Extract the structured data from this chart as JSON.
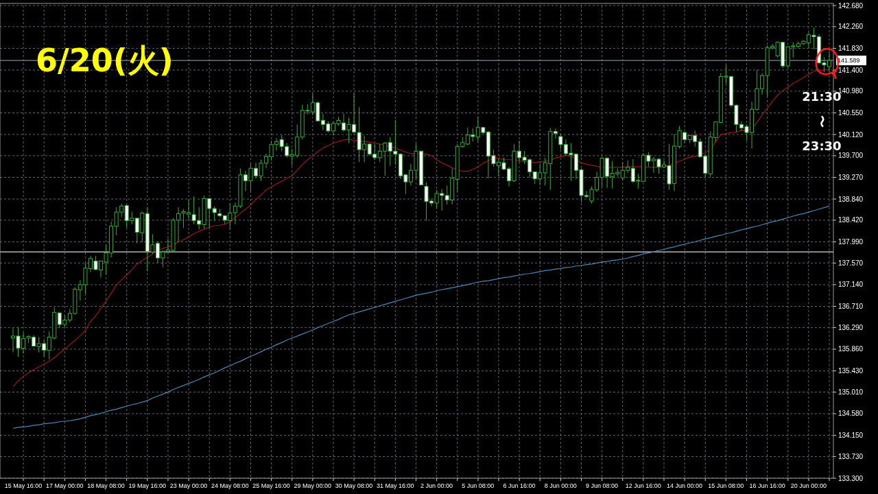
{
  "chart_data": {
    "type": "candlestick",
    "categories": [
      null,
      null,
      "15 May 16:00",
      null,
      null,
      null,
      null,
      null,
      null,
      null,
      "17 May 00:00",
      null,
      null,
      null,
      null,
      null,
      null,
      null,
      "18 May 08:00",
      null,
      null,
      null,
      null,
      null,
      null,
      null,
      "19 May 16:00",
      null,
      null,
      null,
      null,
      null,
      null,
      null,
      "23 May 00:00",
      null,
      null,
      null,
      null,
      null,
      null,
      null,
      "24 May 08:00",
      null,
      null,
      null,
      null,
      null,
      null,
      null,
      "25 May 16:00",
      null,
      null,
      null,
      null,
      null,
      null,
      null,
      "29 May 00:00",
      null,
      null,
      null,
      null,
      null,
      null,
      null,
      "30 May 08:00",
      null,
      null,
      null,
      null,
      null,
      null,
      null,
      "31 May 16:00",
      null,
      null,
      null,
      null,
      null,
      null,
      null,
      "2 Jun 00:00",
      null,
      null,
      null,
      null,
      null,
      null,
      null,
      "5 Jun 08:00",
      null,
      null,
      null,
      null,
      null,
      null,
      null,
      "6 Jun 16:00",
      null,
      null,
      null,
      null,
      null,
      null,
      null,
      "8 Jun 00:00",
      null,
      null,
      null,
      null,
      null,
      null,
      null,
      "9 Jun 08:00",
      null,
      null,
      null,
      null,
      null,
      null,
      null,
      "12 Jun 16:00",
      null,
      null,
      null,
      null,
      null,
      null,
      null,
      "14 Jun 00:00",
      null,
      null,
      null,
      null,
      null,
      null,
      null,
      "15 Jun 08:00",
      null,
      null,
      null,
      null,
      null,
      null,
      null,
      "16 Jun 16:00",
      null,
      null,
      null,
      null,
      null,
      null,
      null,
      "20 Jun 00:00",
      null,
      null,
      null,
      null
    ],
    "ohlc": [
      [
        136.08,
        136.28,
        135.8,
        136.12
      ],
      [
        136.12,
        136.3,
        135.71,
        135.88
      ],
      [
        135.88,
        136.19,
        135.78,
        136.07
      ],
      [
        136.08,
        136.14,
        135.98,
        136.11
      ],
      [
        136.1,
        136.14,
        135.91,
        135.92
      ],
      [
        135.91,
        136.1,
        135.8,
        135.97
      ],
      [
        135.97,
        136.03,
        135.71,
        135.84
      ],
      [
        135.84,
        136.21,
        135.66,
        136.1
      ],
      [
        136.08,
        136.69,
        136.05,
        136.59
      ],
      [
        136.58,
        136.59,
        136.28,
        136.35
      ],
      [
        136.35,
        136.53,
        136.3,
        136.44
      ],
      [
        136.44,
        136.66,
        136.39,
        136.57
      ],
      [
        136.57,
        137.09,
        136.55,
        137.05
      ],
      [
        137.04,
        137.23,
        136.82,
        137.14
      ],
      [
        137.14,
        137.57,
        136.96,
        137.47
      ],
      [
        137.46,
        137.71,
        137.39,
        137.66
      ],
      [
        137.61,
        137.71,
        137.43,
        137.44
      ],
      [
        137.43,
        137.62,
        137.28,
        137.61
      ],
      [
        137.59,
        137.93,
        137.34,
        137.77
      ],
      [
        137.77,
        138.39,
        137.68,
        138.3
      ],
      [
        138.3,
        138.68,
        138.12,
        138.58
      ],
      [
        138.58,
        138.75,
        138.48,
        138.7
      ],
      [
        138.71,
        138.73,
        138.27,
        138.41
      ],
      [
        138.41,
        138.59,
        138.34,
        138.46
      ],
      [
        138.46,
        138.46,
        137.96,
        138.18
      ],
      [
        138.17,
        138.59,
        137.98,
        138.56
      ],
      [
        138.55,
        138.68,
        137.41,
        137.8
      ],
      [
        137.79,
        138.14,
        137.75,
        137.93
      ],
      [
        137.96,
        138.0,
        137.57,
        137.67
      ],
      [
        137.67,
        137.82,
        137.49,
        137.79
      ],
      [
        137.8,
        138.05,
        137.77,
        137.83
      ],
      [
        137.82,
        138.46,
        137.79,
        138.42
      ],
      [
        138.42,
        138.68,
        137.98,
        138.55
      ],
      [
        138.56,
        138.64,
        138.27,
        138.59
      ],
      [
        138.54,
        138.82,
        138.43,
        138.57
      ],
      [
        138.53,
        138.89,
        138.34,
        138.41
      ],
      [
        138.41,
        138.68,
        138.24,
        138.34
      ],
      [
        138.33,
        138.91,
        138.25,
        138.85
      ],
      [
        138.85,
        138.86,
        138.27,
        138.65
      ],
      [
        138.65,
        138.7,
        138.4,
        138.57
      ],
      [
        138.55,
        138.64,
        138.48,
        138.51
      ],
      [
        138.51,
        138.52,
        138.34,
        138.42
      ],
      [
        138.41,
        138.76,
        138.23,
        138.56
      ],
      [
        138.57,
        138.77,
        138.34,
        138.7
      ],
      [
        138.7,
        139.45,
        138.66,
        139.32
      ],
      [
        139.32,
        139.4,
        139.0,
        139.2
      ],
      [
        139.2,
        139.55,
        138.97,
        139.45
      ],
      [
        139.45,
        139.56,
        139.25,
        139.3
      ],
      [
        139.3,
        139.62,
        139.2,
        139.55
      ],
      [
        139.55,
        139.74,
        139.45,
        139.68
      ],
      [
        139.68,
        140.0,
        139.6,
        139.92
      ],
      [
        139.92,
        140.05,
        139.8,
        139.98
      ],
      [
        140.02,
        140.11,
        139.79,
        139.88
      ],
      [
        139.88,
        139.95,
        139.66,
        139.7
      ],
      [
        139.69,
        139.84,
        139.5,
        139.72
      ],
      [
        139.7,
        140.32,
        139.66,
        140.07
      ],
      [
        140.07,
        140.71,
        140.02,
        140.6
      ],
      [
        140.59,
        140.72,
        140.52,
        140.6
      ],
      [
        140.57,
        140.93,
        140.5,
        140.75
      ],
      [
        140.75,
        140.78,
        140.38,
        140.39
      ],
      [
        140.4,
        140.53,
        140.21,
        140.32
      ],
      [
        140.33,
        140.38,
        140.16,
        140.19
      ],
      [
        140.19,
        140.37,
        140.1,
        140.34
      ],
      [
        140.33,
        140.47,
        140.29,
        140.4
      ],
      [
        140.35,
        140.53,
        140.18,
        140.21
      ],
      [
        140.21,
        140.45,
        139.95,
        140.32
      ],
      [
        140.32,
        140.94,
        140.15,
        140.17
      ],
      [
        140.16,
        140.66,
        139.57,
        139.82
      ],
      [
        139.82,
        140.1,
        139.57,
        139.93
      ],
      [
        139.93,
        139.95,
        139.7,
        139.73
      ],
      [
        139.73,
        139.93,
        139.61,
        139.66
      ],
      [
        139.66,
        139.93,
        139.58,
        139.79
      ],
      [
        139.79,
        139.97,
        139.3,
        139.95
      ],
      [
        139.96,
        140.07,
        139.5,
        139.79
      ],
      [
        139.79,
        140.41,
        139.52,
        139.73
      ],
      [
        139.73,
        139.75,
        139.24,
        139.3
      ],
      [
        139.32,
        139.34,
        138.94,
        139.18
      ],
      [
        139.18,
        139.54,
        139.11,
        139.41
      ],
      [
        139.41,
        139.94,
        139.25,
        139.79
      ],
      [
        139.79,
        139.8,
        139.12,
        139.12
      ],
      [
        139.09,
        139.17,
        138.41,
        138.79
      ],
      [
        138.8,
        138.85,
        138.7,
        138.76
      ],
      [
        138.76,
        139.02,
        138.66,
        138.95
      ],
      [
        138.95,
        139.04,
        138.61,
        138.91
      ],
      [
        138.91,
        139.11,
        138.73,
        138.82
      ],
      [
        138.82,
        139.45,
        138.73,
        139.25
      ],
      [
        139.23,
        139.93,
        138.98,
        139.88
      ],
      [
        139.88,
        140.07,
        139.86,
        139.96
      ],
      [
        139.93,
        140.26,
        139.91,
        140.11
      ],
      [
        140.11,
        140.24,
        139.98,
        140.08
      ],
      [
        140.07,
        140.47,
        139.98,
        140.26
      ],
      [
        140.26,
        140.27,
        140.13,
        140.16
      ],
      [
        140.17,
        140.2,
        139.25,
        139.69
      ],
      [
        139.7,
        139.82,
        139.48,
        139.54
      ],
      [
        139.5,
        139.64,
        139.29,
        139.57
      ],
      [
        139.56,
        139.66,
        139.41,
        139.43
      ],
      [
        139.44,
        139.48,
        139.09,
        139.2
      ],
      [
        139.2,
        139.93,
        139.18,
        139.79
      ],
      [
        139.79,
        140.0,
        139.57,
        139.66
      ],
      [
        139.67,
        139.79,
        139.54,
        139.61
      ],
      [
        139.62,
        139.65,
        139.27,
        139.38
      ],
      [
        139.38,
        139.38,
        139.14,
        139.24
      ],
      [
        139.24,
        139.54,
        139.11,
        139.36
      ],
      [
        139.36,
        139.66,
        139.11,
        139.56
      ],
      [
        139.54,
        140.25,
        139.02,
        140.18
      ],
      [
        140.18,
        140.24,
        140.04,
        140.14
      ],
      [
        140.08,
        140.13,
        139.83,
        139.92
      ],
      [
        139.92,
        140.02,
        139.7,
        139.74
      ],
      [
        139.75,
        139.95,
        139.2,
        139.72
      ],
      [
        139.73,
        139.75,
        139.23,
        139.41
      ],
      [
        139.42,
        139.45,
        138.77,
        138.91
      ],
      [
        138.91,
        139.0,
        138.86,
        138.89
      ],
      [
        138.8,
        139.09,
        138.75,
        139.03
      ],
      [
        139.02,
        139.38,
        138.98,
        139.27
      ],
      [
        139.27,
        139.68,
        139.07,
        139.65
      ],
      [
        139.65,
        139.67,
        139.06,
        139.29
      ],
      [
        139.28,
        139.59,
        139.05,
        139.35
      ],
      [
        139.34,
        139.45,
        139.29,
        139.37
      ],
      [
        139.26,
        139.57,
        139.2,
        139.41
      ],
      [
        139.41,
        139.61,
        139.36,
        139.47
      ],
      [
        139.45,
        139.63,
        139.16,
        139.19
      ],
      [
        139.21,
        139.34,
        139.05,
        139.2
      ],
      [
        139.19,
        139.75,
        139.18,
        139.71
      ],
      [
        139.71,
        139.77,
        139.48,
        139.59
      ],
      [
        139.6,
        139.68,
        139.36,
        139.63
      ],
      [
        139.63,
        139.66,
        139.34,
        139.48
      ],
      [
        139.48,
        139.61,
        139.45,
        139.52
      ],
      [
        139.5,
        139.93,
        139.02,
        139.14
      ],
      [
        139.15,
        140.13,
        139.0,
        139.89
      ],
      [
        139.88,
        140.29,
        139.84,
        140.2
      ],
      [
        140.16,
        140.18,
        139.95,
        140.02
      ],
      [
        140.02,
        140.11,
        139.95,
        140.1
      ],
      [
        140.1,
        140.2,
        139.88,
        139.98
      ],
      [
        139.98,
        140.04,
        139.66,
        139.68
      ],
      [
        139.69,
        139.73,
        139.27,
        139.35
      ],
      [
        139.34,
        140.18,
        139.27,
        140.07
      ],
      [
        140.06,
        140.38,
        139.97,
        140.37
      ],
      [
        140.36,
        141.34,
        140.34,
        141.27
      ],
      [
        141.26,
        141.5,
        141.13,
        141.28
      ],
      [
        141.27,
        141.29,
        140.66,
        140.7
      ],
      [
        140.7,
        140.72,
        140.16,
        140.32
      ],
      [
        140.32,
        140.38,
        140.2,
        140.25
      ],
      [
        140.28,
        140.32,
        140.0,
        140.16
      ],
      [
        140.16,
        140.77,
        139.84,
        140.62
      ],
      [
        140.62,
        141.4,
        140.59,
        141.03
      ],
      [
        141.03,
        141.34,
        140.91,
        141.29
      ],
      [
        141.29,
        141.89,
        140.88,
        141.84
      ],
      [
        141.84,
        141.92,
        141.8,
        141.87
      ],
      [
        141.68,
        141.97,
        141.65,
        141.95
      ],
      [
        141.95,
        141.96,
        141.44,
        141.48
      ],
      [
        141.48,
        141.87,
        141.45,
        141.86
      ],
      [
        141.86,
        141.95,
        141.65,
        141.88
      ],
      [
        141.87,
        141.97,
        141.84,
        141.92
      ],
      [
        141.92,
        141.99,
        141.9,
        141.97
      ],
      [
        141.94,
        142.15,
        141.84,
        142.1
      ],
      [
        142.09,
        142.24,
        141.81,
        142.06
      ],
      [
        142.06,
        142.11,
        141.52,
        141.54
      ],
      [
        141.54,
        141.66,
        141.36,
        141.5
      ],
      [
        141.47,
        141.75,
        141.36,
        141.59
      ]
    ],
    "color": "#33b033",
    "series": [
      {
        "type": "line",
        "color": "#9a1a1a",
        "values": [
          135.12,
          135.23,
          135.32,
          135.39,
          135.45,
          135.51,
          135.56,
          135.62,
          135.69,
          135.78,
          135.86,
          135.95,
          136.03,
          136.13,
          136.23,
          136.41,
          136.52,
          136.67,
          136.81,
          136.97,
          137.13,
          137.24,
          137.33,
          137.44,
          137.55,
          137.62,
          137.68,
          137.75,
          137.82,
          137.86,
          137.89,
          137.93,
          137.99,
          138.03,
          138.09,
          138.15,
          138.2,
          138.24,
          138.28,
          138.31,
          138.32,
          138.34,
          138.38,
          138.47,
          138.56,
          138.64,
          138.72,
          138.83,
          138.92,
          139.02,
          139.08,
          139.14,
          139.19,
          139.25,
          139.3,
          139.41,
          139.52,
          139.62,
          139.69,
          139.78,
          139.85,
          139.9,
          139.95,
          139.98,
          140.01,
          140.03,
          140.0,
          139.99,
          139.98,
          139.97,
          139.95,
          139.93,
          139.91,
          139.88,
          139.85,
          139.81,
          139.77,
          139.74,
          139.74,
          139.74,
          139.73,
          139.7,
          139.62,
          139.56,
          139.51,
          139.46,
          139.42,
          139.39,
          139.39,
          139.43,
          139.48,
          139.55,
          139.6,
          139.66,
          139.65,
          139.62,
          139.62,
          139.62,
          139.6,
          139.58,
          139.58,
          139.56,
          139.58,
          139.59,
          139.61,
          139.65,
          139.68,
          139.7,
          139.7,
          139.62,
          139.56,
          139.53,
          139.51,
          139.49,
          139.47,
          139.47,
          139.47,
          139.47,
          139.47,
          139.48,
          139.48,
          139.48,
          139.48,
          139.47,
          139.47,
          139.47,
          139.48,
          139.5,
          139.55,
          139.59,
          139.63,
          139.67,
          139.69,
          139.72,
          139.76,
          139.81,
          139.98,
          140.12,
          140.14,
          140.16,
          140.17,
          140.2,
          140.2,
          140.24,
          140.36,
          140.51,
          140.64,
          140.78,
          140.9,
          140.99,
          141.06,
          141.13,
          141.19,
          141.25,
          141.32,
          141.37,
          141.39,
          141.4,
          141.41
        ]
      },
      {
        "type": "line",
        "color": "#4f86b0",
        "values": [
          134.29,
          134.31,
          134.32,
          134.33,
          134.35,
          134.36,
          134.38,
          134.39,
          134.4,
          134.42,
          134.43,
          134.44,
          134.46,
          134.48,
          134.51,
          134.54,
          134.56,
          134.59,
          134.62,
          134.65,
          134.67,
          134.7,
          134.73,
          134.76,
          134.78,
          134.81,
          134.84,
          134.89,
          134.93,
          134.97,
          135.01,
          135.06,
          135.1,
          135.14,
          135.18,
          135.22,
          135.26,
          135.31,
          135.35,
          135.39,
          135.44,
          135.49,
          135.53,
          135.58,
          135.62,
          135.67,
          135.72,
          135.76,
          135.81,
          135.86,
          135.9,
          135.95,
          135.99,
          136.04,
          136.08,
          136.12,
          136.16,
          136.2,
          136.24,
          136.29,
          136.33,
          136.37,
          136.41,
          136.45,
          136.5,
          136.54,
          136.57,
          136.6,
          136.63,
          136.66,
          136.69,
          136.72,
          136.75,
          136.78,
          136.81,
          136.84,
          136.87,
          136.9,
          136.93,
          136.95,
          136.97,
          136.99,
          137.02,
          137.04,
          137.06,
          137.08,
          137.1,
          137.12,
          137.14,
          137.17,
          137.19,
          137.21,
          137.22,
          137.24,
          137.26,
          137.28,
          137.29,
          137.31,
          137.33,
          137.35,
          137.36,
          137.38,
          137.4,
          137.42,
          137.43,
          137.45,
          137.46,
          137.48,
          137.49,
          137.51,
          137.52,
          137.54,
          137.55,
          137.57,
          137.59,
          137.6,
          137.62,
          137.63,
          137.65,
          137.67,
          137.7,
          137.72,
          137.75,
          137.77,
          137.79,
          137.82,
          137.84,
          137.87,
          137.89,
          137.92,
          137.94,
          137.97,
          137.99,
          138.02,
          138.05,
          138.07,
          138.1,
          138.12,
          138.15,
          138.17,
          138.2,
          138.23,
          138.25,
          138.28,
          138.3,
          138.33,
          138.36,
          138.39,
          138.41,
          138.44,
          138.47,
          138.5,
          138.53,
          138.55,
          138.58,
          138.61,
          138.64,
          138.67,
          138.7
        ]
      }
    ],
    "ylim": [
      133.3,
      142.68
    ],
    "yticks": [
      {
        "value": 142.68,
        "label": "142.680"
      },
      {
        "value": 142.26,
        "label": "142.260"
      },
      {
        "value": 141.83,
        "label": "141.830"
      },
      {
        "value": 141.4,
        "label": "141.400"
      },
      {
        "value": 140.98,
        "label": "140.980"
      },
      {
        "value": 140.55,
        "label": "140.550"
      },
      {
        "value": 140.12,
        "label": "140.120"
      },
      {
        "value": 139.7,
        "label": "139.700"
      },
      {
        "value": 139.27,
        "label": "139.270"
      },
      {
        "value": 138.84,
        "label": "138.840"
      },
      {
        "value": 138.42,
        "label": "138.420"
      },
      {
        "value": 137.99,
        "label": "137.990"
      },
      {
        "value": 137.57,
        "label": "137.570"
      },
      {
        "value": 137.14,
        "label": "137.140"
      },
      {
        "value": 136.71,
        "label": "136.710"
      },
      {
        "value": 136.29,
        "label": "136.290"
      },
      {
        "value": 135.86,
        "label": "135.860"
      },
      {
        "value": 135.43,
        "label": "135.430"
      },
      {
        "value": 135.01,
        "label": "135.010"
      },
      {
        "value": 134.58,
        "label": "134.580"
      },
      {
        "value": 134.15,
        "label": "134.150"
      },
      {
        "value": 133.73,
        "label": "133.730"
      },
      {
        "value": 133.3,
        "label": "133.300"
      }
    ],
    "grid": true,
    "ref_lines": [
      {
        "axis": "y",
        "value": 141.589,
        "label": "141.589",
        "color": "#7d8b99"
      },
      {
        "axis": "y",
        "value": 137.79,
        "color": "#d8d8d8"
      }
    ],
    "annotations": [
      "6/20(火)",
      "21:30\n〜\n23:30"
    ]
  }
}
